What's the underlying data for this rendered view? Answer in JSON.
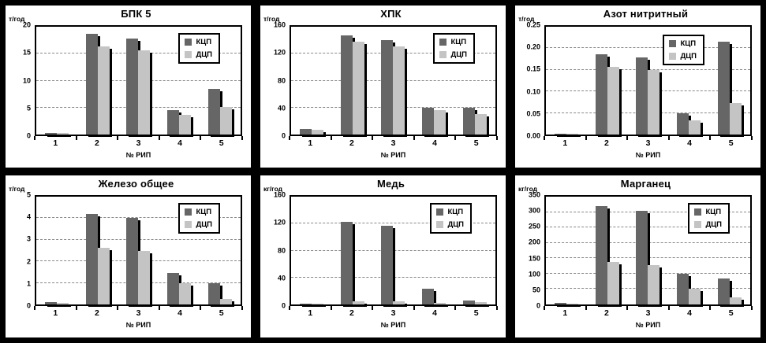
{
  "page_background": "#000000",
  "colors": {
    "kcp_bar": "#666666",
    "dcp_bar": "#c4c4c4",
    "bar_shadow": "#000000",
    "gridline": "#888888",
    "panel_background": "#ffffff"
  },
  "legend": {
    "series": [
      "КЦП",
      "ДЦП"
    ]
  },
  "x_axis_label": "№ РИП",
  "chart_data": [
    {
      "type": "bar",
      "title": "БПК 5",
      "unit": "т/год",
      "xlabel": "№ РИП",
      "categories": [
        "1",
        "2",
        "3",
        "4",
        "5"
      ],
      "ylim": [
        0,
        20
      ],
      "ytick": 5,
      "tick_decimals": 0,
      "grid": "dashed",
      "legend_position": "top-right",
      "series": [
        {
          "name": "КЦП",
          "values": [
            0.3,
            18.7,
            17.8,
            4.6,
            8.4
          ]
        },
        {
          "name": "ДЦП",
          "values": [
            0.3,
            16.4,
            15.6,
            3.6,
            5.1
          ]
        }
      ]
    },
    {
      "type": "bar",
      "title": "ХПК",
      "unit": "т/год",
      "xlabel": "№ РИП",
      "categories": [
        "1",
        "2",
        "3",
        "4",
        "5"
      ],
      "ylim": [
        0,
        160
      ],
      "ytick": 40,
      "tick_decimals": 0,
      "grid": "dashed",
      "legend_position": "top-right",
      "series": [
        {
          "name": "КЦП",
          "values": [
            8,
            147,
            140,
            40,
            40
          ]
        },
        {
          "name": "ДЦП",
          "values": [
            7,
            138,
            131,
            36,
            30
          ]
        }
      ]
    },
    {
      "type": "bar",
      "title": "Азот нитритный",
      "unit": "т/год",
      "xlabel": "№ РИП",
      "categories": [
        "1",
        "2",
        "3",
        "4",
        "5"
      ],
      "ylim": [
        0,
        0.25
      ],
      "ytick": 0.05,
      "tick_decimals": 2,
      "grid": "dashed",
      "legend_position": "top-right",
      "series": [
        {
          "name": "КЦП",
          "values": [
            0.002,
            0.187,
            0.179,
            0.049,
            0.215
          ]
        },
        {
          "name": "ДЦП",
          "values": [
            0.002,
            0.157,
            0.15,
            0.033,
            0.073
          ]
        }
      ]
    },
    {
      "type": "bar",
      "title": "Железо общее",
      "unit": "т/год",
      "xlabel": "№ РИП",
      "categories": [
        "1",
        "2",
        "3",
        "4",
        "5"
      ],
      "ylim": [
        0,
        5
      ],
      "ytick": 1,
      "tick_decimals": 0,
      "grid": "dashed",
      "legend_position": "top-right",
      "series": [
        {
          "name": "КЦП",
          "values": [
            0.1,
            4.18,
            4.0,
            1.45,
            0.97
          ]
        },
        {
          "name": "ДЦП",
          "values": [
            0.08,
            2.63,
            2.5,
            1.0,
            0.25
          ]
        }
      ]
    },
    {
      "type": "bar",
      "title": "Медь",
      "unit": "кг/год",
      "xlabel": "№ РИП",
      "categories": [
        "1",
        "2",
        "3",
        "4",
        "5"
      ],
      "ylim": [
        0,
        160
      ],
      "ytick": 40,
      "tick_decimals": 0,
      "grid": "dashed",
      "legend_position": "top-right",
      "series": [
        {
          "name": "КЦП",
          "values": [
            0.5,
            123,
            117,
            23,
            6
          ]
        },
        {
          "name": "ДЦП",
          "values": [
            0.3,
            5,
            5,
            2,
            4
          ]
        }
      ]
    },
    {
      "type": "bar",
      "title": "Марганец",
      "unit": "кг/год",
      "xlabel": "№ РИП",
      "categories": [
        "1",
        "2",
        "3",
        "4",
        "5"
      ],
      "ylim": [
        0,
        350
      ],
      "ytick": 50,
      "tick_decimals": 0,
      "grid": "dashed",
      "legend_position": "top-right",
      "series": [
        {
          "name": "КЦП",
          "values": [
            5,
            320,
            303,
            100,
            84
          ]
        },
        {
          "name": "ДЦП",
          "values": [
            3,
            137,
            129,
            51,
            22
          ]
        }
      ]
    }
  ]
}
